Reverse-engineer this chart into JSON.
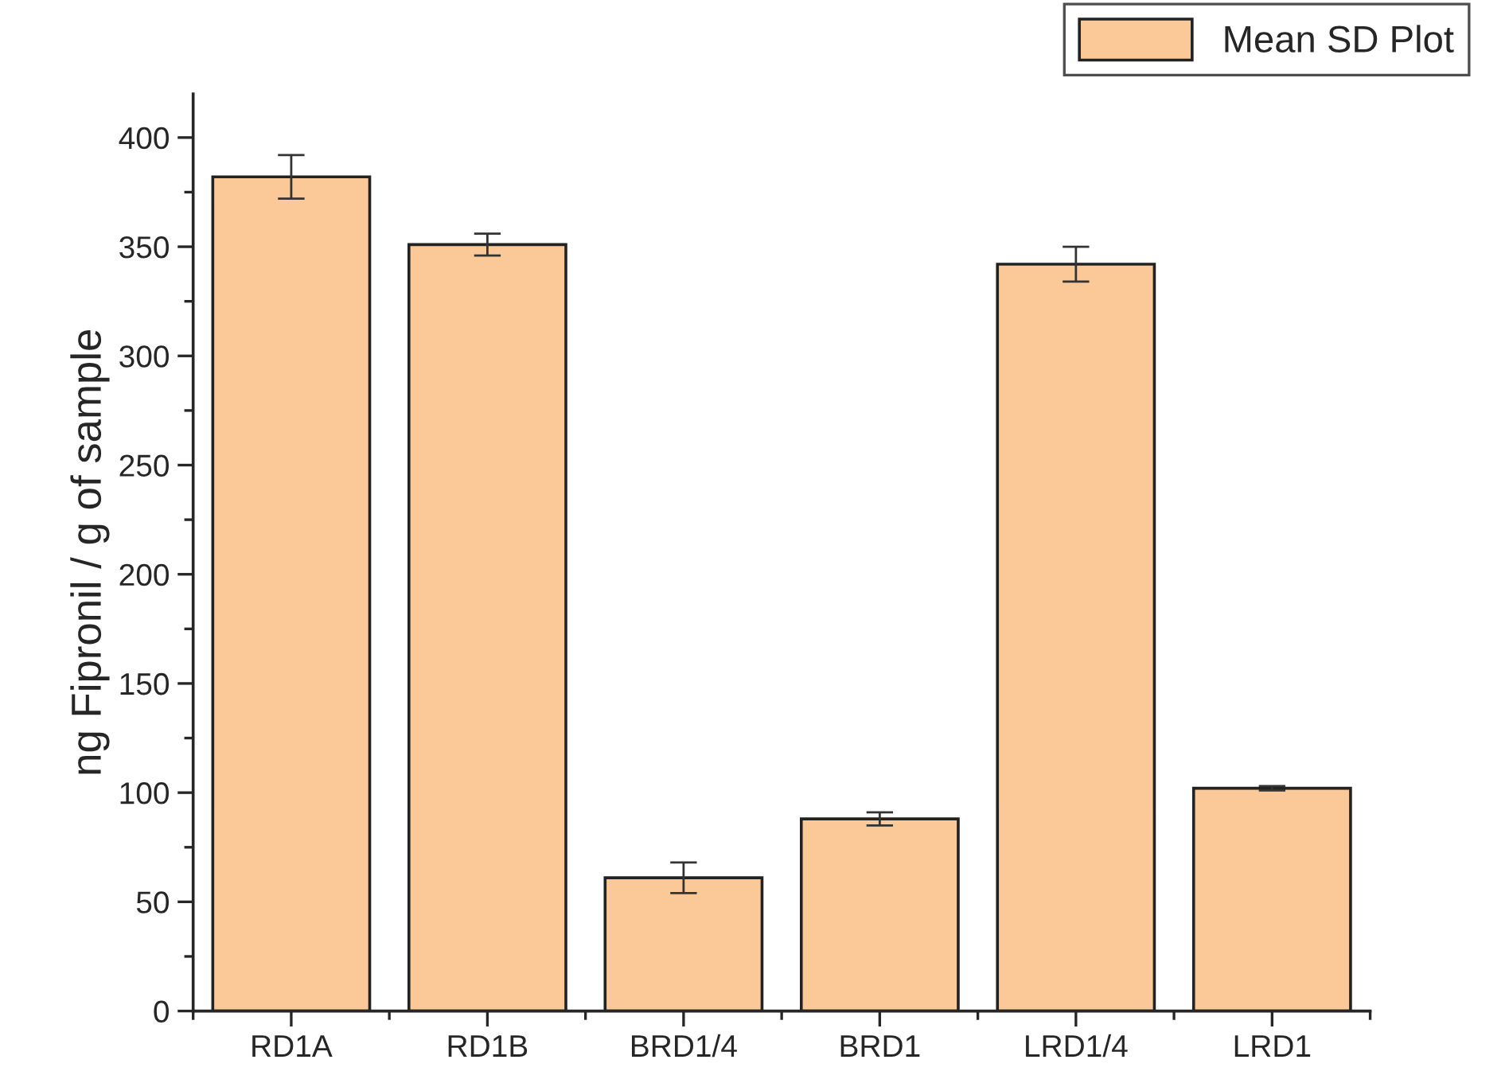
{
  "chart_data": {
    "type": "bar",
    "ylabel": "ng Fipronil / g of sample",
    "categories": [
      "RD1A",
      "RD1B",
      "BRD1/4",
      "BRD1",
      "LRD1/4",
      "LRD1"
    ],
    "series": [
      {
        "name": "Mean SD Plot",
        "color": "#fbc898",
        "values": [
          382,
          351,
          61,
          88,
          342,
          102
        ],
        "errors": [
          10,
          5,
          7,
          3,
          8,
          1
        ]
      }
    ],
    "ylim": [
      0,
      420
    ],
    "yticks": [
      0,
      50,
      100,
      150,
      200,
      250,
      300,
      350,
      400
    ],
    "grid": false,
    "legend": "top right"
  }
}
